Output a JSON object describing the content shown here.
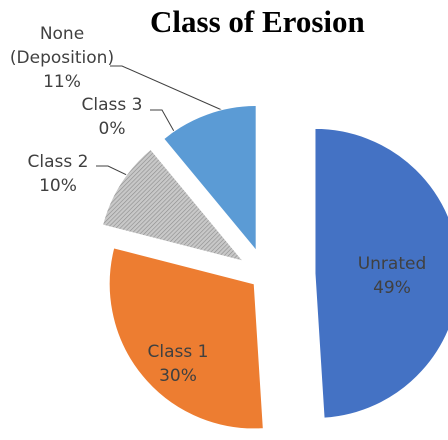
{
  "chart_data": {
    "type": "pie",
    "title": "Class of Erosion",
    "categories": [
      "Unrated",
      "Class 1",
      "Class 2",
      "Class 3",
      "None (Deposition)"
    ],
    "values": [
      49,
      30,
      10,
      0,
      11
    ],
    "value_labels": [
      "49%",
      "30%",
      "10%",
      "0%",
      "11%"
    ],
    "colors": [
      "#4472c4",
      "#ed7d31",
      "#a5a5a5",
      "#ffc000",
      "#5b9bd5"
    ]
  }
}
